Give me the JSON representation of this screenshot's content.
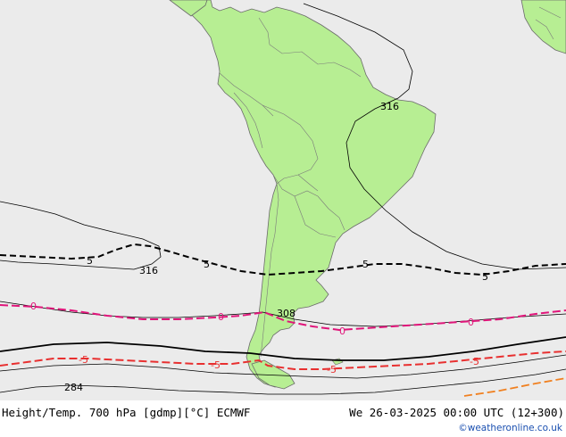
{
  "title": "Height/Temp. 700 hPa [gdmp][°C] ECMWF",
  "datetime": "We 26-03-2025 00:00 UTC (12+300)",
  "credit": "©weatheronline.co.uk",
  "colors": {
    "ocean": "#ebebeb",
    "land": "#b7ee93",
    "border": "#7a7a7a",
    "height_contour": "#000000",
    "temp_neg5": "#e83030",
    "temp_0": "#e0157a",
    "temp_5": "#000000",
    "temp_warm": "#f08020",
    "credit": "#1a4fb0"
  },
  "height_labels": {
    "h316_north": "316",
    "h316_west": "316",
    "h308": "308",
    "h284": "284"
  },
  "temp_labels": {
    "t5_a": "5",
    "t5_b": "5",
    "t5_c": "5",
    "t5_d": "5",
    "t0_a": "0",
    "t0_b": "0",
    "t0_c": "0",
    "t0_d": "0",
    "tm5_a": "-5",
    "tm5_b": "-5",
    "tm5_c": "-5",
    "tm5_d": "-5"
  }
}
